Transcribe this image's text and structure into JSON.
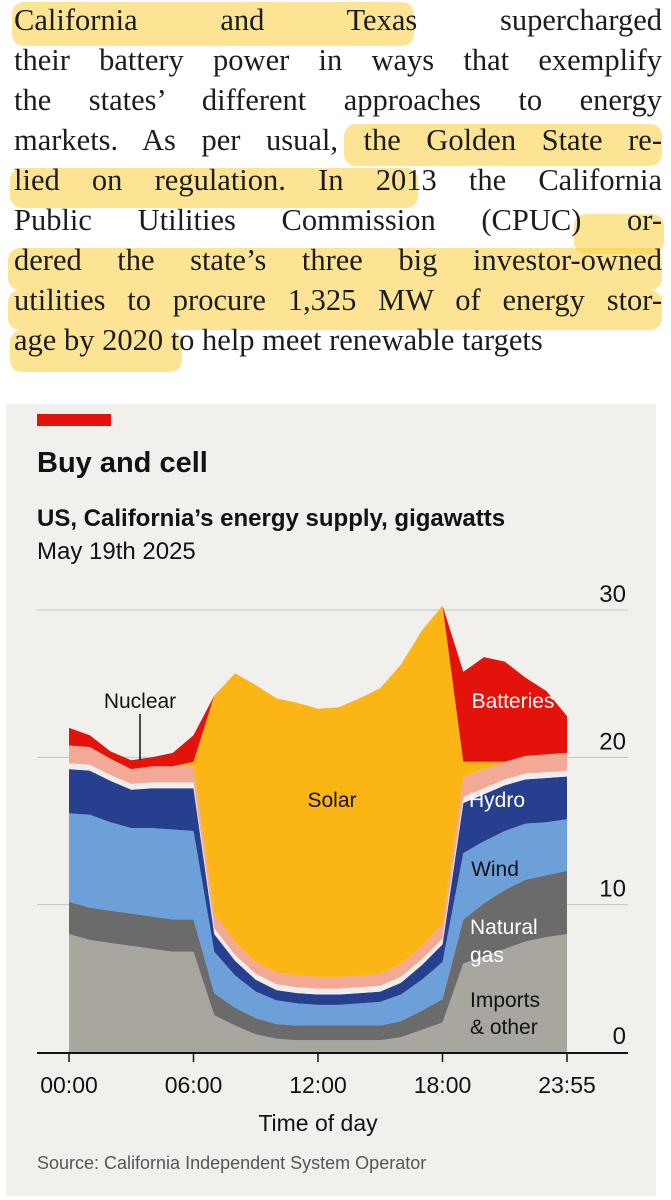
{
  "article": {
    "lines": [
      "California and Texas supercharged",
      "their battery power in ways that exemplify",
      "the states’ different approaches to energy",
      "markets. As per usual, the Golden State re-",
      "lied on regulation. In 2013 the California",
      "Public Utilities Commission (CPUC) or-",
      "dered the state’s three big investor-owned",
      "utilities to procure 1,325 MW of energy stor-",
      "age by 2020 to help meet renewable targets"
    ],
    "highlight_color": "#fccd3c"
  },
  "chart": {
    "title": "Buy and cell",
    "subtitle": "US, California’s energy supply, gigawatts",
    "date": "May 19th 2025",
    "source": "Source: California Independent System Operator",
    "xlabel": "Time of day",
    "background": "#f2f0ec",
    "accent": "#e3120b"
  },
  "chart_data": {
    "type": "area",
    "stacked": true,
    "x": [
      "00:00",
      "01:00",
      "02:00",
      "03:00",
      "04:00",
      "05:00",
      "06:00",
      "07:00",
      "08:00",
      "09:00",
      "10:00",
      "11:00",
      "12:00",
      "13:00",
      "14:00",
      "15:00",
      "16:00",
      "17:00",
      "18:00",
      "19:00",
      "20:00",
      "21:00",
      "22:00",
      "23:00",
      "23:55"
    ],
    "xticks": [
      "00:00",
      "06:00",
      "12:00",
      "18:00",
      "23:55"
    ],
    "ylim": [
      0,
      30
    ],
    "yticks": [
      0,
      10,
      20,
      30
    ],
    "series": [
      {
        "name": "Imports & other",
        "color": "#a9a59f",
        "values": [
          8,
          7.6,
          7.4,
          7.2,
          7,
          6.8,
          6.8,
          2.5,
          1.8,
          1.2,
          0.9,
          0.8,
          0.8,
          0.8,
          0.8,
          0.8,
          1,
          1.5,
          2,
          6,
          6.5,
          7,
          7.5,
          7.8,
          8
        ]
      },
      {
        "name": "Natural gas",
        "color": "#6b6b6b",
        "values": [
          2.2,
          2.2,
          2.2,
          2.2,
          2.2,
          2.2,
          2.2,
          1.5,
          1.2,
          1.1,
          1,
          1,
          1,
          1,
          1,
          1,
          1.1,
          1.3,
          1.6,
          3,
          3.6,
          4,
          4.2,
          4.2,
          4.3
        ]
      },
      {
        "name": "Wind",
        "color": "#6d9fd9",
        "values": [
          6,
          6.3,
          6,
          5.8,
          6,
          6.1,
          6,
          2.8,
          2.2,
          1.8,
          1.6,
          1.5,
          1.4,
          1.4,
          1.5,
          1.6,
          1.8,
          2.1,
          2.5,
          4.5,
          4.2,
          4,
          3.8,
          3.6,
          3.5
        ]
      },
      {
        "name": "Hydro",
        "color": "#263f8f",
        "values": [
          3,
          3,
          2.8,
          2.6,
          2.7,
          2.8,
          2.9,
          1.2,
          1,
          0.8,
          0.7,
          0.7,
          0.7,
          0.7,
          0.7,
          0.7,
          0.8,
          1,
          1.2,
          3.4,
          3.2,
          3.1,
          3,
          3,
          2.9
        ]
      },
      {
        "name": "Nuclear",
        "color": "#eeeeee",
        "values": [
          0.4,
          0.4,
          0.4,
          0.4,
          0.4,
          0.4,
          0.4,
          0.4,
          0.4,
          0.4,
          0.4,
          0.4,
          0.4,
          0.4,
          0.4,
          0.4,
          0.4,
          0.4,
          0.4,
          0.4,
          0.4,
          0.4,
          0.4,
          0.4,
          0.4
        ]
      },
      {
        "name": "",
        "color": "#f2aa97",
        "values": [
          1.2,
          1.2,
          1.1,
          1,
          1.1,
          1.1,
          1.1,
          1,
          0.9,
          0.8,
          0.8,
          0.8,
          0.8,
          0.8,
          0.8,
          0.8,
          0.9,
          0.9,
          1,
          1.4,
          1.3,
          1.2,
          1.2,
          1.2,
          1.2
        ]
      },
      {
        "name": "Solar",
        "color": "#fbb515",
        "values": [
          0,
          0,
          0,
          0,
          0,
          0,
          0.3,
          14.8,
          18.2,
          18.8,
          18.6,
          18.5,
          18.2,
          18.3,
          18.8,
          19.4,
          20.3,
          21.4,
          21.6,
          1,
          0.5,
          0,
          0,
          0,
          0
        ]
      },
      {
        "name": "Batteries",
        "color": "#e3120b",
        "values": [
          1.2,
          0.8,
          0.5,
          0.6,
          0.6,
          0.9,
          1.8,
          0,
          0,
          0,
          0,
          0,
          0,
          0,
          0,
          0,
          0,
          0,
          0,
          6.1,
          7.1,
          6.8,
          5.3,
          4.3,
          2.5
        ]
      }
    ],
    "labels": {
      "nuclear": "Nuclear",
      "batteries": "Batteries",
      "solar": "Solar",
      "hydro": "Hydro",
      "wind": "Wind",
      "gas": [
        "Natural",
        "gas"
      ],
      "imports": [
        "Imports",
        "& other"
      ]
    }
  }
}
